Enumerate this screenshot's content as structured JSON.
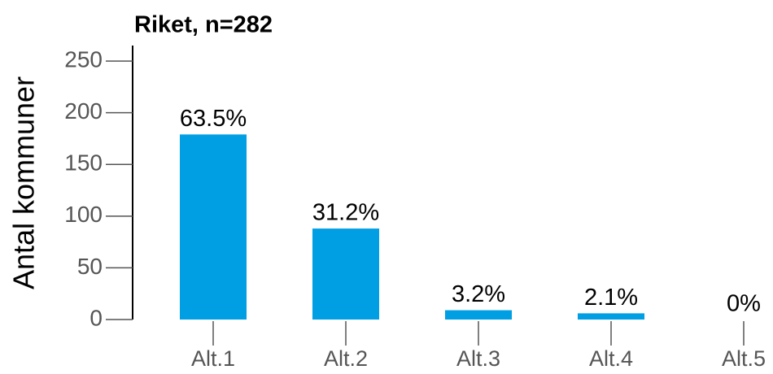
{
  "chart_data": {
    "type": "bar",
    "title": "Riket, n=282",
    "ylabel": "Antal kommuner",
    "categories": [
      "Alt.1",
      "Alt.2",
      "Alt.3",
      "Alt.4",
      "Alt.5"
    ],
    "values": [
      179,
      88,
      9,
      6,
      0
    ],
    "value_labels": [
      "63.5%",
      "31.2%",
      "3.2%",
      "2.1%",
      "0%"
    ],
    "color": "#009fe3",
    "ylim": [
      0,
      265
    ],
    "yticks": [
      0,
      50,
      100,
      150,
      200,
      250
    ],
    "grid": false
  }
}
